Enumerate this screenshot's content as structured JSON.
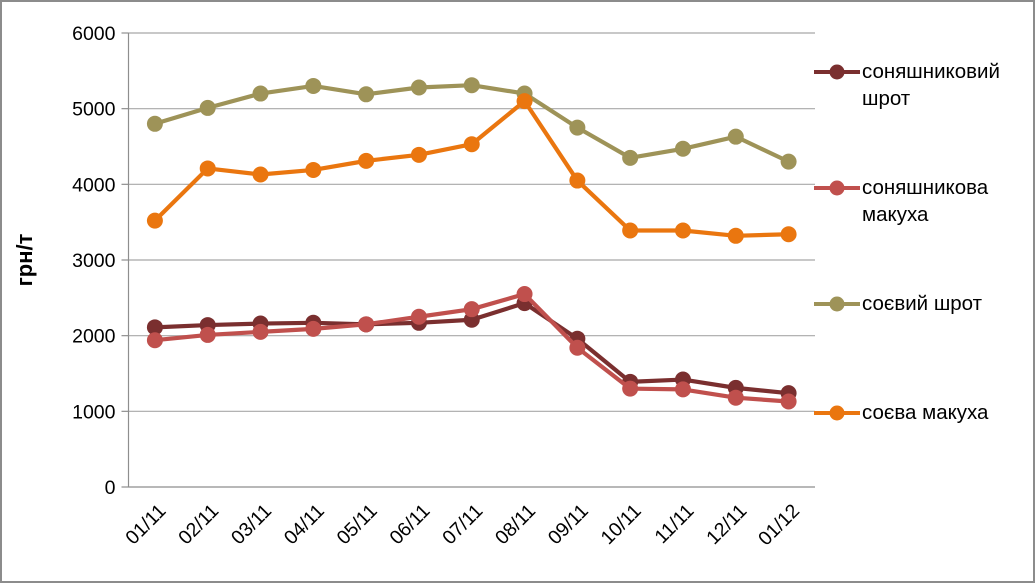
{
  "chart_data": {
    "type": "line",
    "title": "",
    "ylabel": "грн/т",
    "xlabel": "",
    "ylim": [
      0,
      6000
    ],
    "y_ticks": [
      0,
      1000,
      2000,
      3000,
      4000,
      5000,
      6000
    ],
    "grid": true,
    "legend_position": "right",
    "categories": [
      "01/11",
      "02/11",
      "03/11",
      "04/11",
      "05/11",
      "06/11",
      "07/11",
      "08/11",
      "09/11",
      "10/11",
      "11/11",
      "12/11",
      "01/12"
    ],
    "series": [
      {
        "name": "соняшниковий шрот",
        "color": "#7A2F2F",
        "values": [
          2110,
          2140,
          2160,
          2170,
          2150,
          2170,
          2210,
          2430,
          1960,
          1390,
          1420,
          1310,
          1240
        ]
      },
      {
        "name": "соняшникова макуха",
        "color": "#C0504D",
        "values": [
          1940,
          2010,
          2050,
          2090,
          2150,
          2250,
          2350,
          2550,
          1840,
          1300,
          1290,
          1180,
          1130
        ]
      },
      {
        "name": "соєвий шрот",
        "color": "#9E9358",
        "values": [
          4800,
          5010,
          5200,
          5300,
          5190,
          5280,
          5310,
          5200,
          4750,
          4350,
          4470,
          4630,
          4300
        ]
      },
      {
        "name": "соєва макуха",
        "color": "#EA760F",
        "values": [
          3520,
          4210,
          4130,
          4190,
          4310,
          4390,
          4530,
          5100,
          4050,
          3390,
          3390,
          3320,
          3340
        ]
      }
    ]
  },
  "colors": {
    "background": "#FFFFFF",
    "gridline": "#A8A8A8",
    "axis": "#8E8E8E",
    "border": "#8C8C8C",
    "text": "#000000"
  }
}
